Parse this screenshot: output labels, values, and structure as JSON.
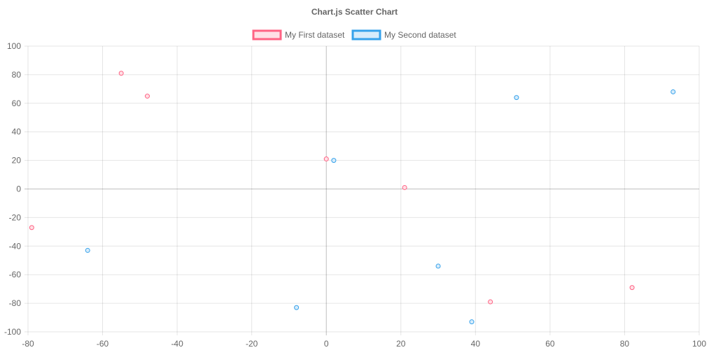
{
  "chart_data": {
    "type": "scatter",
    "title": "Chart.js Scatter Chart",
    "xlabel": "",
    "ylabel": "",
    "xlim": [
      -80,
      100
    ],
    "ylim": [
      -100,
      100
    ],
    "x_ticks": [
      -80,
      -60,
      -40,
      -20,
      0,
      20,
      40,
      60,
      80,
      100
    ],
    "y_ticks": [
      100,
      80,
      60,
      40,
      20,
      0,
      -20,
      -40,
      -60,
      -80,
      -100
    ],
    "grid": true,
    "legend_position": "top",
    "series": [
      {
        "name": "My First dataset",
        "color": "#ff6384",
        "fill": "#ffe0e6",
        "points": [
          {
            "x": -55,
            "y": 81
          },
          {
            "x": -48,
            "y": 65
          },
          {
            "x": 0,
            "y": 21
          },
          {
            "x": 21,
            "y": 1
          },
          {
            "x": -79,
            "y": -27
          },
          {
            "x": 44,
            "y": -79
          },
          {
            "x": 82,
            "y": -69
          }
        ]
      },
      {
        "name": "My Second dataset",
        "color": "#36a2eb",
        "fill": "#d7ecfb",
        "points": [
          {
            "x": 2,
            "y": 20
          },
          {
            "x": 51,
            "y": 64
          },
          {
            "x": 93,
            "y": 68
          },
          {
            "x": -64,
            "y": -43
          },
          {
            "x": 30,
            "y": -54
          },
          {
            "x": -8,
            "y": -83
          },
          {
            "x": 39,
            "y": -93
          }
        ]
      }
    ]
  }
}
